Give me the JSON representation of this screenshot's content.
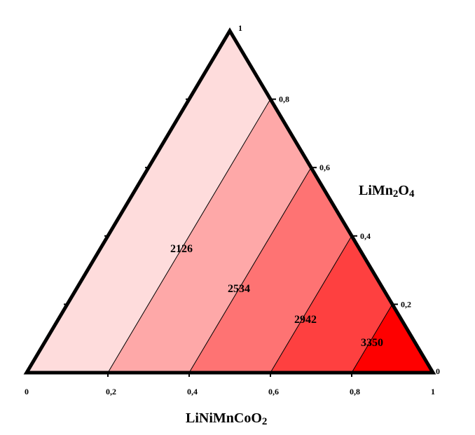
{
  "chart_data": {
    "type": "ternary-contour",
    "axes": {
      "bottom": {
        "title_parts": [
          {
            "text": "LiNiMnCoO",
            "sub": false
          },
          {
            "text": "2",
            "sub": true
          }
        ],
        "ticks": [
          "0",
          "0,2",
          "0,4",
          "0,6",
          "0,8",
          "1"
        ],
        "tick_values": [
          0,
          0.2,
          0.4,
          0.6,
          0.8,
          1
        ]
      },
      "right": {
        "title_parts": [
          {
            "text": "LiMn",
            "sub": false
          },
          {
            "text": "2",
            "sub": true
          },
          {
            "text": "O",
            "sub": false
          },
          {
            "text": "4",
            "sub": true
          }
        ],
        "ticks": [
          "0",
          "0,2",
          "0,4",
          "0,6",
          "0,8",
          "1"
        ],
        "tick_values": [
          0,
          0.2,
          0.4,
          0.6,
          0.8,
          1
        ]
      }
    },
    "bands": [
      {
        "from": 0.0,
        "to": 0.2,
        "color": "#fedcdc"
      },
      {
        "from": 0.2,
        "to": 0.4,
        "color": "#fea8a8"
      },
      {
        "from": 0.4,
        "to": 0.6,
        "color": "#fe7373"
      },
      {
        "from": 0.6,
        "to": 0.8,
        "color": "#fe4040"
      },
      {
        "from": 0.8,
        "to": 1.0,
        "color": "#fe0000"
      }
    ],
    "contours": [
      {
        "value": "2126",
        "position": 0.2
      },
      {
        "value": "2534",
        "position": 0.4
      },
      {
        "value": "2942",
        "position": 0.6
      },
      {
        "value": "3350",
        "position": 0.8
      }
    ]
  }
}
